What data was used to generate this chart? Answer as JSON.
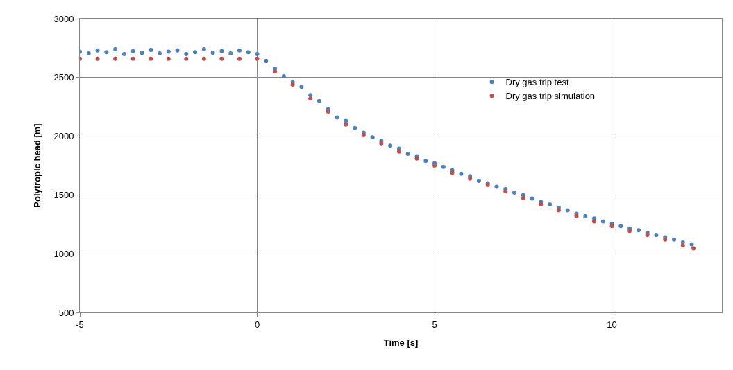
{
  "chart_data": {
    "type": "scatter",
    "xlabel": "Time [s]",
    "ylabel": "Polytropic head [m]",
    "xlim": [
      -5,
      13.1
    ],
    "xticks": [
      -5,
      0,
      5,
      10
    ],
    "ylim": [
      500,
      3000
    ],
    "yticks": [
      500,
      1000,
      1500,
      2000,
      2500,
      3000
    ],
    "grid": true,
    "legend": "top right",
    "marker": "circle",
    "series": [
      {
        "name": "Dry gas trip test",
        "color": "#4f81bd",
        "x": [
          -5,
          -4.75,
          -4.5,
          -4.25,
          -4,
          -3.75,
          -3.5,
          -3.25,
          -3,
          -2.75,
          -2.5,
          -2.25,
          -2,
          -1.75,
          -1.5,
          -1.25,
          -1,
          -0.75,
          -0.5,
          -0.25,
          0,
          0.25,
          0.5,
          0.75,
          1,
          1.25,
          1.5,
          1.75,
          2,
          2.25,
          2.5,
          2.75,
          3,
          3.25,
          3.5,
          3.75,
          4,
          4.25,
          4.5,
          4.75,
          5,
          5.25,
          5.5,
          5.75,
          6,
          6.25,
          6.5,
          6.75,
          7,
          7.25,
          7.5,
          7.75,
          8,
          8.25,
          8.5,
          8.75,
          9,
          9.25,
          9.5,
          9.75,
          10,
          10.25,
          10.5,
          10.75,
          11,
          11.25,
          11.5,
          11.75,
          12,
          12.25
        ],
        "values": [
          2720,
          2705,
          2730,
          2715,
          2740,
          2700,
          2725,
          2710,
          2735,
          2705,
          2720,
          2730,
          2700,
          2715,
          2740,
          2710,
          2725,
          2705,
          2730,
          2715,
          2700,
          2640,
          2575,
          2510,
          2460,
          2420,
          2350,
          2300,
          2230,
          2160,
          2130,
          2070,
          2030,
          1990,
          1960,
          1920,
          1895,
          1850,
          1830,
          1790,
          1770,
          1740,
          1710,
          1680,
          1660,
          1620,
          1600,
          1570,
          1550,
          1520,
          1500,
          1470,
          1440,
          1420,
          1390,
          1370,
          1340,
          1320,
          1300,
          1275,
          1255,
          1235,
          1215,
          1200,
          1180,
          1160,
          1140,
          1120,
          1095,
          1080
        ]
      },
      {
        "name": "Dry gas trip simulation",
        "color": "#c0504d",
        "x": [
          -5,
          -4.5,
          -4,
          -3.5,
          -3,
          -2.5,
          -2,
          -1.5,
          -1,
          -0.5,
          0,
          0.5,
          1,
          1.5,
          2,
          2.5,
          3,
          3.5,
          4,
          4.5,
          5,
          5.5,
          6,
          6.5,
          7,
          7.5,
          8,
          8.5,
          9,
          9.5,
          10,
          10.5,
          11,
          11.5,
          12,
          12.3
        ],
        "values": [
          2660,
          2660,
          2660,
          2660,
          2660,
          2660,
          2660,
          2660,
          2660,
          2660,
          2660,
          2550,
          2440,
          2320,
          2210,
          2100,
          2010,
          1940,
          1870,
          1810,
          1750,
          1690,
          1640,
          1585,
          1530,
          1475,
          1420,
          1370,
          1320,
          1275,
          1235,
          1195,
          1160,
          1120,
          1070,
          1045
        ]
      }
    ]
  }
}
